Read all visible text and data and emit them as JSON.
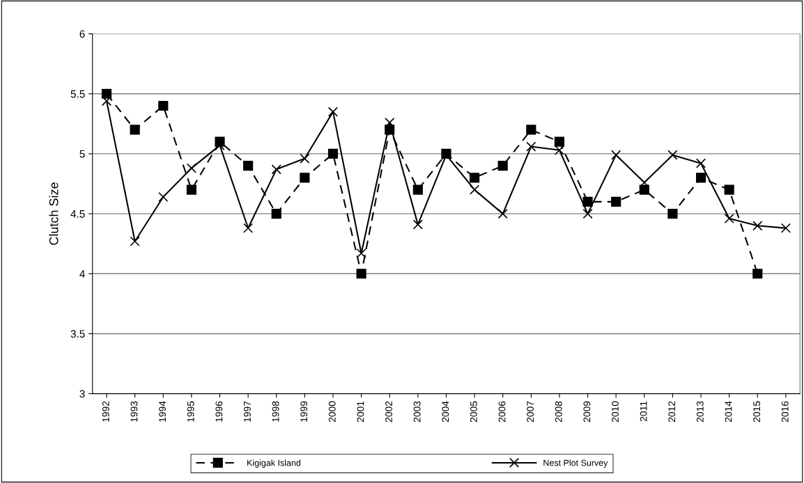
{
  "chart_data": {
    "type": "line",
    "ylabel": "Clutch Size",
    "categories": [
      "1992",
      "1993",
      "1994",
      "1995",
      "1996",
      "1997",
      "1998",
      "1999",
      "2000",
      "2001",
      "2002",
      "2003",
      "2004",
      "2005",
      "2006",
      "2007",
      "2008",
      "2009",
      "2010",
      "2011",
      "2012",
      "2013",
      "2014",
      "2015",
      "2016"
    ],
    "series": [
      {
        "name": "Kigigak Island",
        "color": "#000000",
        "marker": "square",
        "line_style": "dashed",
        "values": [
          5.5,
          5.2,
          5.4,
          4.7,
          5.1,
          4.9,
          4.5,
          4.8,
          5.0,
          4.0,
          5.2,
          4.7,
          5.0,
          4.8,
          4.9,
          5.2,
          5.1,
          4.6,
          4.6,
          4.7,
          4.5,
          4.8,
          4.7,
          4.0,
          null
        ]
      },
      {
        "name": "Nest Plot Survey",
        "color": "#000000",
        "marker": "cross",
        "line_style": "solid",
        "values": [
          5.44,
          4.27,
          4.64,
          4.88,
          5.07,
          4.38,
          4.87,
          4.96,
          5.35,
          4.17,
          5.26,
          4.41,
          4.99,
          4.7,
          4.5,
          5.06,
          5.03,
          4.5,
          4.99,
          4.76,
          4.99,
          4.92,
          4.46,
          4.4,
          4.38
        ]
      }
    ],
    "ylim": [
      3,
      6
    ],
    "yticks": [
      3,
      3.5,
      4,
      4.5,
      5,
      5.5,
      6
    ],
    "grid": "y",
    "legend": "bottom"
  }
}
